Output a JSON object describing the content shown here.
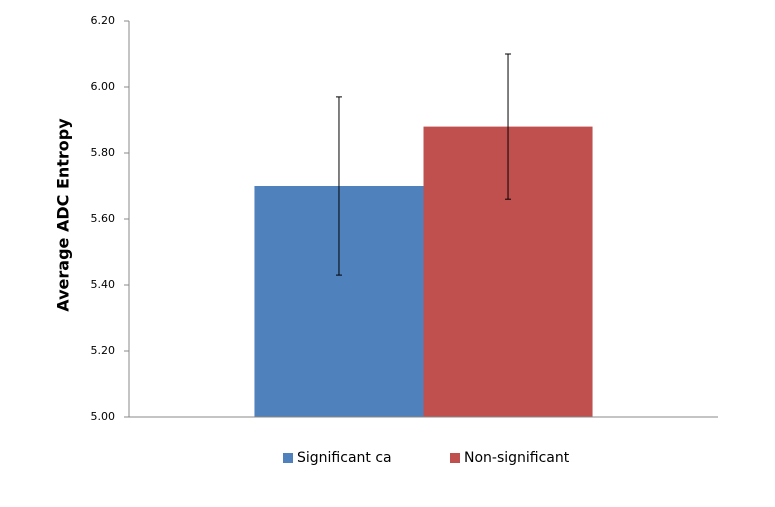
{
  "chart_data": {
    "type": "bar",
    "y_label": "Average ADC Entropy",
    "categories": [
      null
    ],
    "series": [
      {
        "name": "Significant ca",
        "color": "#4f81bd",
        "values": [
          5.7
        ],
        "errors": [
          0.27
        ]
      },
      {
        "name": "Non-significant",
        "color": "#c0504d",
        "values": [
          5.88
        ],
        "errors": [
          0.22
        ]
      }
    ],
    "ylim": [
      5,
      6.2
    ],
    "yticks": [
      {
        "value": 5,
        "label": "5.00"
      },
      {
        "value": 5.2,
        "label": "5.20"
      },
      {
        "value": 5.4,
        "label": "5.40"
      },
      {
        "value": 5.6,
        "label": "5.60"
      },
      {
        "value": 5.8,
        "label": "5.80"
      },
      {
        "value": 6,
        "label": "6.00"
      },
      {
        "value": 6.2,
        "label": "6.20"
      }
    ],
    "grid": false,
    "legend": "bottom"
  }
}
